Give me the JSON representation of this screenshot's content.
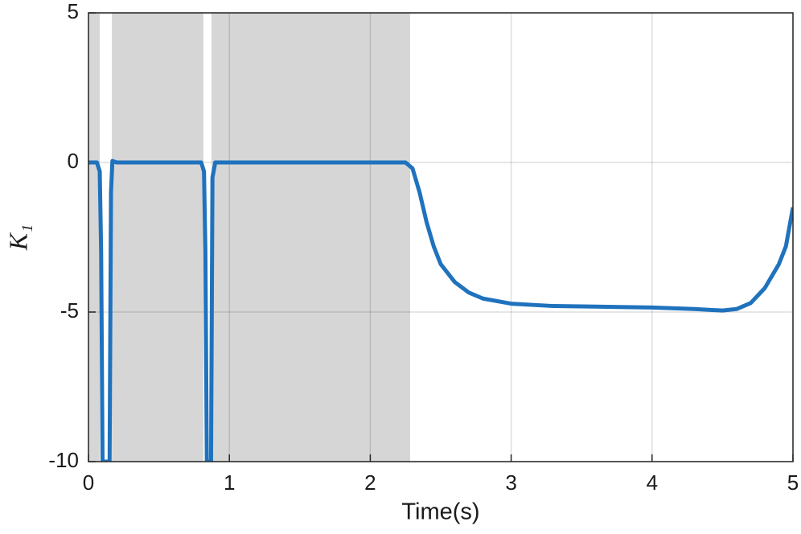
{
  "chart_data": {
    "type": "line",
    "xlabel": "Time(s)",
    "ylabel": "K₁",
    "xlim": [
      0,
      5
    ],
    "ylim": [
      -10,
      5
    ],
    "xticks": [
      0,
      1,
      2,
      3,
      4,
      5
    ],
    "yticks": [
      -10,
      -5,
      0,
      5
    ],
    "grid": true,
    "shaded_regions": [
      [
        0,
        0.08
      ],
      [
        0.166,
        0.816
      ],
      [
        0.873,
        2.283
      ]
    ],
    "shade_color": "#d6d6d6",
    "x": [
      0,
      0.06,
      0.08,
      0.09,
      0.1,
      0.15,
      0.16,
      0.17,
      0.2,
      0.8,
      0.82,
      0.83,
      0.84,
      0.87,
      0.88,
      0.9,
      2.25,
      2.3,
      2.35,
      2.4,
      2.45,
      2.5,
      2.6,
      2.7,
      2.8,
      3.0,
      3.3,
      3.6,
      4.0,
      4.3,
      4.5,
      4.6,
      4.7,
      4.8,
      4.9,
      4.95,
      5
    ],
    "series": [
      {
        "color": "#1f72bd",
        "values": [
          0,
          0,
          -0.3,
          -3,
          -10,
          -10,
          -1,
          0.05,
          0,
          0,
          -0.3,
          -3,
          -10,
          -10,
          -0.5,
          0,
          0,
          -0.2,
          -1,
          -2,
          -2.8,
          -3.4,
          -4,
          -4.35,
          -4.55,
          -4.72,
          -4.8,
          -4.82,
          -4.85,
          -4.9,
          -4.95,
          -4.9,
          -4.7,
          -4.2,
          -3.4,
          -2.8,
          -1.5
        ]
      }
    ]
  }
}
